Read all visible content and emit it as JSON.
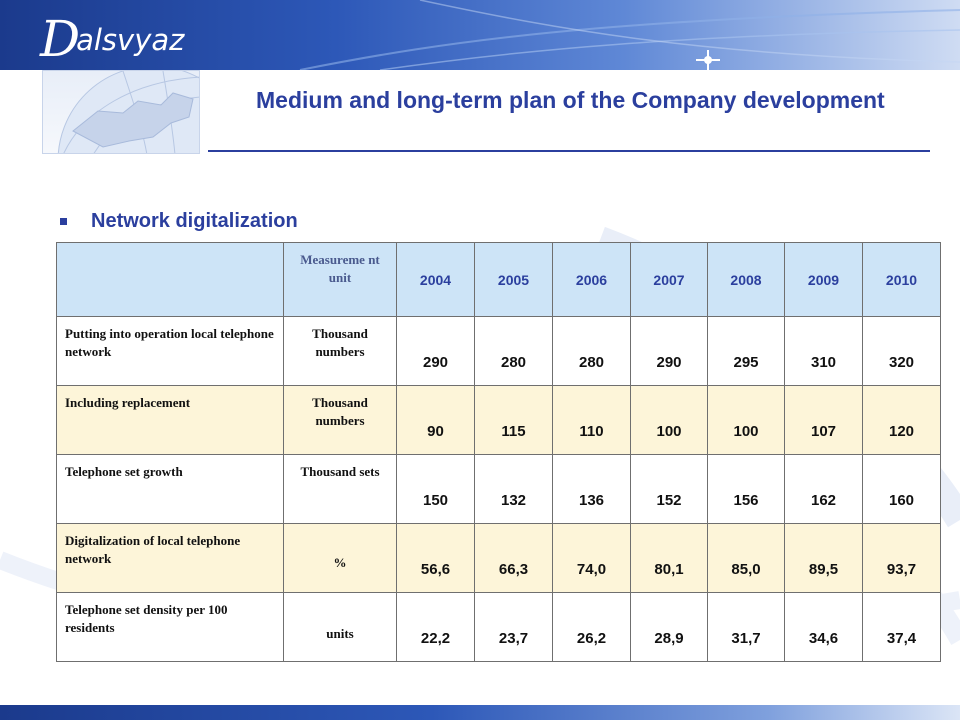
{
  "header": {
    "logo_initial": "D",
    "logo_text": "alsvyaz",
    "title": "Medium and long-term plan of the Company development"
  },
  "section": {
    "label": "Network digitalization",
    "bullet_icon": "square-bullet-icon"
  },
  "colors": {
    "accent": "#2b3f9e",
    "header_row": "#cde4f7",
    "cream_row": "#fdf5d9"
  },
  "table": {
    "unit_header": "Measureme nt unit",
    "years": [
      "2004",
      "2005",
      "2006",
      "2007",
      "2008",
      "2009",
      "2010"
    ],
    "rows": [
      {
        "label": "Putting into operation local telephone network",
        "unit": "Thousand numbers",
        "values": [
          "290",
          "280",
          "280",
          "290",
          "295",
          "310",
          "320"
        ]
      },
      {
        "label": "Including replacement",
        "unit": "Thousand numbers",
        "values": [
          "90",
          "115",
          "110",
          "100",
          "100",
          "107",
          "120"
        ]
      },
      {
        "label": "Telephone set growth",
        "unit": "Thousand sets",
        "values": [
          "150",
          "132",
          "136",
          "152",
          "156",
          "162",
          "160"
        ]
      },
      {
        "label": "Digitalization of local telephone network",
        "unit": "%",
        "values": [
          "56,6",
          "66,3",
          "74,0",
          "80,1",
          "85,0",
          "89,5",
          "93,7"
        ]
      },
      {
        "label": "Telephone set density per 100 residents",
        "unit": "units",
        "values": [
          "22,2",
          "23,7",
          "26,2",
          "28,9",
          "31,7",
          "34,6",
          "37,4"
        ]
      }
    ]
  }
}
